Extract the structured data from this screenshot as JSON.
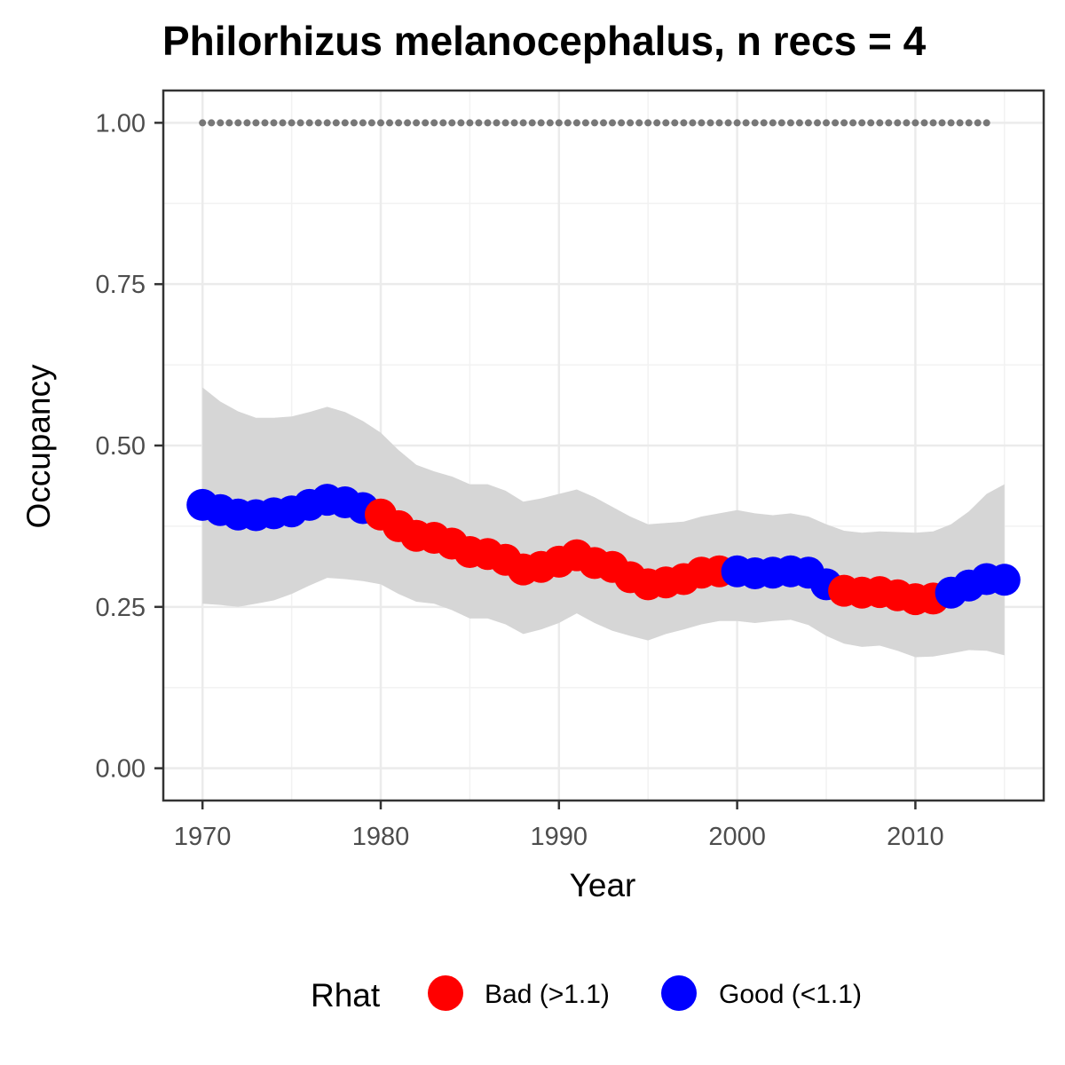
{
  "chart_data": {
    "type": "line",
    "title": "Philorhizus melanocephalus, n recs = 4",
    "xlabel": "Year",
    "ylabel": "Occupancy",
    "xlim": [
      1967.8,
      2017.2
    ],
    "ylim": [
      -0.05,
      1.05
    ],
    "x_ticks": [
      1970,
      1980,
      1990,
      2000,
      2010
    ],
    "x_tick_labels": [
      "1970",
      "1980",
      "1990",
      "2000",
      "2010"
    ],
    "y_ticks": [
      0,
      0.25,
      0.5,
      0.75,
      1
    ],
    "y_tick_labels": [
      "0.00",
      "0.25",
      "0.50",
      "0.75",
      "1.00"
    ],
    "grid": true,
    "legend": {
      "title": "Rhat",
      "position": "bottom",
      "entries": [
        {
          "label": "Bad (>1.1)",
          "color": "#ff0000"
        },
        {
          "label": "Good (<1.1)",
          "color": "#0000ff"
        }
      ]
    },
    "colors": {
      "bad": "#ff0000",
      "good": "#0000ff",
      "ribbon": "#d6d6d6",
      "reference": "#777777"
    },
    "reference_line": {
      "y": 1.0,
      "x_range": [
        1970,
        2014
      ],
      "style": "dotted"
    },
    "series": [
      {
        "x": [
          1970,
          1971,
          1972,
          1973,
          1974,
          1975,
          1976,
          1977,
          1978,
          1979,
          1980,
          1981,
          1982,
          1983,
          1984,
          1985,
          1986,
          1987,
          1988,
          1989,
          1990,
          1991,
          1992,
          1993,
          1994,
          1995,
          1996,
          1997,
          1998,
          1999,
          2000,
          2001,
          2002,
          2003,
          2004,
          2005,
          2006,
          2007,
          2008,
          2009,
          2010,
          2011,
          2012,
          2013,
          2014,
          2015
        ],
        "mean": [
          0.408,
          0.4,
          0.393,
          0.392,
          0.395,
          0.398,
          0.408,
          0.416,
          0.412,
          0.403,
          0.393,
          0.375,
          0.36,
          0.357,
          0.348,
          0.335,
          0.332,
          0.323,
          0.308,
          0.312,
          0.32,
          0.33,
          0.318,
          0.312,
          0.296,
          0.285,
          0.288,
          0.293,
          0.303,
          0.305,
          0.305,
          0.302,
          0.303,
          0.305,
          0.303,
          0.285,
          0.275,
          0.272,
          0.273,
          0.268,
          0.262,
          0.263,
          0.272,
          0.283,
          0.293,
          0.292
        ],
        "lower": [
          0.255,
          0.253,
          0.25,
          0.255,
          0.26,
          0.27,
          0.283,
          0.295,
          0.293,
          0.29,
          0.285,
          0.27,
          0.258,
          0.255,
          0.245,
          0.232,
          0.232,
          0.223,
          0.208,
          0.215,
          0.225,
          0.24,
          0.225,
          0.213,
          0.205,
          0.198,
          0.208,
          0.215,
          0.223,
          0.228,
          0.228,
          0.225,
          0.228,
          0.23,
          0.222,
          0.205,
          0.193,
          0.188,
          0.19,
          0.182,
          0.172,
          0.173,
          0.178,
          0.183,
          0.182,
          0.175
        ],
        "upper": [
          0.59,
          0.568,
          0.553,
          0.543,
          0.543,
          0.545,
          0.552,
          0.56,
          0.552,
          0.538,
          0.52,
          0.493,
          0.47,
          0.46,
          0.452,
          0.44,
          0.44,
          0.43,
          0.413,
          0.418,
          0.425,
          0.432,
          0.42,
          0.405,
          0.39,
          0.378,
          0.38,
          0.382,
          0.39,
          0.395,
          0.4,
          0.395,
          0.392,
          0.395,
          0.39,
          0.378,
          0.368,
          0.365,
          0.367,
          0.366,
          0.365,
          0.367,
          0.378,
          0.398,
          0.425,
          0.44
        ],
        "rhat": [
          "Good",
          "Good",
          "Good",
          "Good",
          "Good",
          "Good",
          "Good",
          "Good",
          "Good",
          "Good",
          "Bad",
          "Bad",
          "Bad",
          "Bad",
          "Bad",
          "Bad",
          "Bad",
          "Bad",
          "Bad",
          "Bad",
          "Bad",
          "Bad",
          "Bad",
          "Bad",
          "Bad",
          "Bad",
          "Bad",
          "Bad",
          "Bad",
          "Bad",
          "Good",
          "Good",
          "Good",
          "Good",
          "Good",
          "Good",
          "Bad",
          "Bad",
          "Bad",
          "Bad",
          "Bad",
          "Bad",
          "Good",
          "Good",
          "Good",
          "Good"
        ]
      }
    ]
  }
}
